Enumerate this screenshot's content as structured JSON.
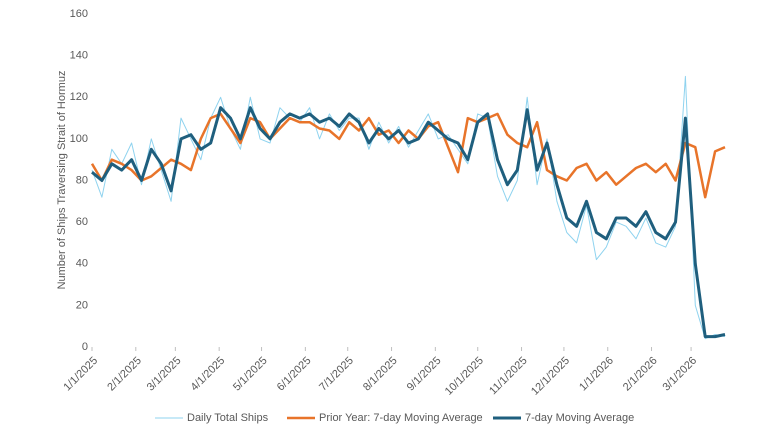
{
  "chart_data": {
    "type": "line",
    "ylabel": "Number of Ships Traversing Strait of Hormuz",
    "x": [
      "1/1/2025",
      "1/8/2025",
      "1/15/2025",
      "1/22/2025",
      "1/29/2025",
      "2/5/2025",
      "2/12/2025",
      "2/19/2025",
      "2/26/2025",
      "3/5/2025",
      "3/12/2025",
      "3/19/2025",
      "3/26/2025",
      "4/2/2025",
      "4/9/2025",
      "4/16/2025",
      "4/23/2025",
      "4/30/2025",
      "5/7/2025",
      "5/14/2025",
      "5/21/2025",
      "5/28/2025",
      "6/4/2025",
      "6/11/2025",
      "6/18/2025",
      "6/25/2025",
      "7/2/2025",
      "7/9/2025",
      "7/16/2025",
      "7/23/2025",
      "7/30/2025",
      "8/6/2025",
      "8/13/2025",
      "8/20/2025",
      "8/27/2025",
      "9/3/2025",
      "9/10/2025",
      "9/17/2025",
      "9/24/2025",
      "10/1/2025",
      "10/8/2025",
      "10/15/2025",
      "10/22/2025",
      "10/29/2025",
      "11/5/2025",
      "11/12/2025",
      "11/19/2025",
      "11/26/2025",
      "12/3/2025",
      "12/10/2025",
      "12/17/2025",
      "12/24/2025",
      "12/31/2025",
      "1/7/2026",
      "1/14/2026",
      "1/21/2026",
      "1/28/2026",
      "2/4/2026",
      "2/11/2026",
      "2/18/2026",
      "2/25/2026",
      "3/4/2026",
      "3/11/2026",
      "3/18/2026",
      "3/25/2026"
    ],
    "series": [
      {
        "name": "Daily Total Ships",
        "color": "#8fd3ef",
        "width": 1,
        "values": [
          85,
          72,
          95,
          88,
          98,
          78,
          100,
          85,
          70,
          110,
          100,
          90,
          110,
          120,
          105,
          95,
          120,
          100,
          98,
          115,
          110,
          108,
          115,
          100,
          112,
          104,
          110,
          110,
          95,
          108,
          98,
          106,
          96,
          104,
          112,
          100,
          102,
          95,
          88,
          112,
          110,
          82,
          70,
          80,
          120,
          78,
          100,
          70,
          55,
          50,
          68,
          42,
          48,
          60,
          58,
          52,
          62,
          50,
          48,
          58,
          130,
          20,
          4,
          6,
          5
        ]
      },
      {
        "name": "Prior Year: 7-day Moving Average",
        "color": "#e8742a",
        "width": 2.5,
        "values": [
          88,
          80,
          90,
          88,
          85,
          80,
          82,
          86,
          90,
          88,
          85,
          100,
          110,
          112,
          105,
          98,
          110,
          108,
          100,
          105,
          110,
          108,
          108,
          105,
          104,
          100,
          108,
          104,
          110,
          102,
          104,
          98,
          104,
          100,
          106,
          108,
          96,
          84,
          110,
          108,
          110,
          112,
          102,
          98,
          96,
          108,
          85,
          82,
          80,
          86,
          88,
          80,
          84,
          78,
          82,
          86,
          88,
          84,
          88,
          80,
          98,
          96,
          72,
          94,
          96
        ]
      },
      {
        "name": "7-day Moving Average",
        "color": "#1f5f7e",
        "width": 3,
        "values": [
          84,
          80,
          88,
          85,
          90,
          80,
          95,
          88,
          75,
          100,
          102,
          95,
          98,
          115,
          110,
          100,
          115,
          105,
          100,
          108,
          112,
          110,
          112,
          108,
          110,
          106,
          112,
          108,
          98,
          105,
          100,
          104,
          98,
          100,
          108,
          104,
          100,
          98,
          90,
          108,
          112,
          90,
          78,
          85,
          114,
          85,
          98,
          78,
          62,
          58,
          70,
          55,
          52,
          62,
          62,
          58,
          65,
          55,
          52,
          60,
          110,
          40,
          5,
          5,
          6
        ]
      }
    ],
    "xlim": [
      "1/1/2025",
      "3/25/2026"
    ],
    "xticks": [
      "1/1/2025",
      "2/1/2025",
      "3/1/2025",
      "4/1/2025",
      "5/1/2025",
      "6/1/2025",
      "7/1/2025",
      "8/1/2025",
      "9/1/2025",
      "10/1/2025",
      "11/1/2025",
      "12/1/2025",
      "1/1/2026",
      "2/1/2026",
      "3/1/2026"
    ],
    "ylim": [
      0,
      160
    ],
    "yticks": [
      0,
      20,
      40,
      60,
      80,
      100,
      120,
      140,
      160
    ],
    "grid": false,
    "legend": "bottom"
  }
}
